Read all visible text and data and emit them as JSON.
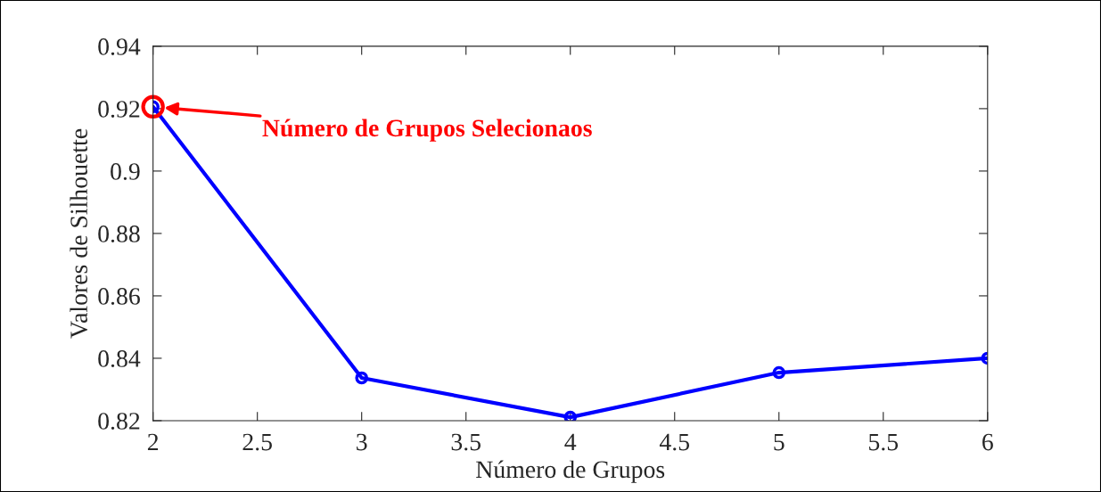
{
  "chart_data": {
    "type": "line",
    "xlabel": "Número de Grupos",
    "ylabel": "Valores de Silhouette",
    "x": [
      2,
      3,
      4,
      5,
      6
    ],
    "series": [
      {
        "color": "#0000ff",
        "values": [
          0.9206,
          0.8337,
          0.8211,
          0.8354,
          0.84
        ]
      }
    ],
    "xlim": [
      2,
      6
    ],
    "xticks": [
      2,
      2.5,
      3,
      3.5,
      4,
      4.5,
      5,
      5.5,
      6
    ],
    "ylim": [
      0.82,
      0.94
    ],
    "yticks": [
      0.82,
      0.84,
      0.86,
      0.88,
      0.9,
      0.92,
      0.94
    ],
    "marker": "circle",
    "line_style": "solid",
    "grid": false,
    "legend": false,
    "annotations": [
      "Número de Grupos Selecionaos"
    ]
  }
}
